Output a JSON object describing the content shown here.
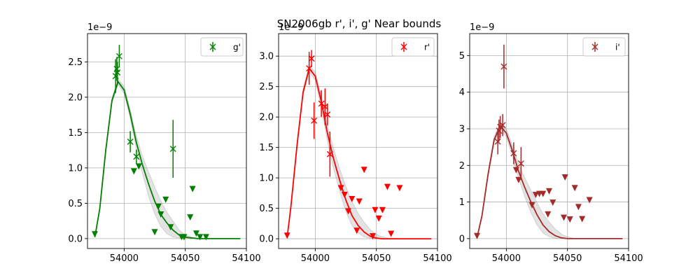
{
  "figure_title": "SN2006gb  r', i', g' Near bounds",
  "chart_data": [
    {
      "type": "scatter",
      "panel": "left",
      "color": "#008000",
      "legend": "g'",
      "legend_position": "upper right",
      "offset_text": "1e−9",
      "grid": true,
      "xlim": [
        53970,
        54100
      ],
      "ylim": [
        -0.14,
        2.9
      ],
      "xticks": [
        54000,
        54050,
        54100
      ],
      "xtick_labels": [
        "54000",
        "54050",
        "54100"
      ],
      "yticks": [
        0.0,
        0.5,
        1.0,
        1.5,
        2.0,
        2.5
      ],
      "ytick_labels": [
        "0.0",
        "0.5",
        "1.0",
        "1.5",
        "2.0",
        "2.5"
      ],
      "detections": [
        {
          "x": 53993,
          "y": 2.3,
          "err": 0.24
        },
        {
          "x": 53994,
          "y": 2.4,
          "err": 0.17
        },
        {
          "x": 53994.5,
          "y": 2.35,
          "err": 0.15
        },
        {
          "x": 53996,
          "y": 2.58,
          "err": 0.16
        },
        {
          "x": 54005,
          "y": 1.37,
          "err": 0.15
        },
        {
          "x": 54010,
          "y": 1.16,
          "err": 0.1
        },
        {
          "x": 54040,
          "y": 1.27,
          "err": 0.41
        }
      ],
      "upper_limits": [
        {
          "x": 53976,
          "y": 0.06
        },
        {
          "x": 54008,
          "y": 0.95
        },
        {
          "x": 54012,
          "y": 1.02
        },
        {
          "x": 54025,
          "y": 0.09
        },
        {
          "x": 54028,
          "y": 0.45
        },
        {
          "x": 54030,
          "y": 0.34
        },
        {
          "x": 54034,
          "y": 0.55
        },
        {
          "x": 54038,
          "y": 0.16
        },
        {
          "x": 54047,
          "y": 0.02
        },
        {
          "x": 54049,
          "y": 0.02
        },
        {
          "x": 54054,
          "y": 0.3
        },
        {
          "x": 54056,
          "y": 0.7
        },
        {
          "x": 54059,
          "y": 0.07
        },
        {
          "x": 54062,
          "y": 0.02
        },
        {
          "x": 54067,
          "y": 0.02
        }
      ],
      "model": {
        "x": [
          53976,
          53980,
          53985,
          53990,
          53995,
          54000,
          54005,
          54010,
          54015,
          54020,
          54025,
          54030,
          54035,
          54040,
          54045,
          54050,
          54055,
          54060,
          54070,
          54080,
          54090,
          54095
        ],
        "y": [
          0.02,
          0.42,
          1.26,
          1.95,
          2.22,
          2.1,
          1.76,
          1.36,
          1.04,
          0.77,
          0.53,
          0.34,
          0.22,
          0.12,
          0.05,
          0.02,
          0.01,
          0.0,
          0.0,
          0.0,
          0.0,
          0.0
        ],
        "band_low": [
          0.02,
          0.4,
          1.22,
          1.91,
          2.18,
          2.05,
          1.7,
          1.27,
          0.92,
          0.6,
          0.35,
          0.17,
          0.07,
          0.02,
          0.01,
          0.0,
          0.0,
          0.0,
          0.0,
          0.0,
          0.0,
          0.0
        ],
        "band_high": [
          0.02,
          0.44,
          1.3,
          1.99,
          2.26,
          2.15,
          1.82,
          1.45,
          1.16,
          0.94,
          0.73,
          0.53,
          0.37,
          0.25,
          0.12,
          0.05,
          0.02,
          0.01,
          0.0,
          0.0,
          0.0,
          0.0
        ]
      }
    },
    {
      "type": "scatter",
      "panel": "middle",
      "color": "#ff0000",
      "legend": "r'",
      "legend_position": "upper right",
      "offset_text": "1e−9",
      "grid": true,
      "xlim": [
        53970,
        54100
      ],
      "ylim": [
        -0.16,
        3.37
      ],
      "xticks": [
        54000,
        54050,
        54100
      ],
      "xtick_labels": [
        "54000",
        "54050",
        "54100"
      ],
      "yticks": [
        0.0,
        0.5,
        1.0,
        1.5,
        2.0,
        2.5,
        3.0
      ],
      "ytick_labels": [
        "0.0",
        "0.5",
        "1.0",
        "1.5",
        "2.0",
        "2.5",
        "3.0"
      ],
      "detections": [
        {
          "x": 53995,
          "y": 2.8,
          "err": 0.27
        },
        {
          "x": 53997,
          "y": 2.96,
          "err": 0.14
        },
        {
          "x": 53999,
          "y": 1.94,
          "err": 0.3
        },
        {
          "x": 54005,
          "y": 2.22,
          "err": 0.22
        },
        {
          "x": 54008,
          "y": 2.17,
          "err": 0.3
        },
        {
          "x": 54010,
          "y": 2.04,
          "err": 0.18
        },
        {
          "x": 54012,
          "y": 1.39,
          "err": 0.37
        }
      ],
      "upper_limits": [
        {
          "x": 53977,
          "y": 0.05
        },
        {
          "x": 54021,
          "y": 0.83
        },
        {
          "x": 54024,
          "y": 0.72
        },
        {
          "x": 54027,
          "y": 0.45
        },
        {
          "x": 54030,
          "y": 0.65
        },
        {
          "x": 54034,
          "y": 0.13
        },
        {
          "x": 54036,
          "y": 0.61
        },
        {
          "x": 54040,
          "y": 1.13
        },
        {
          "x": 54047,
          "y": 0.04
        },
        {
          "x": 54049,
          "y": 0.47
        },
        {
          "x": 54052,
          "y": 0.33
        },
        {
          "x": 54055,
          "y": 0.47
        },
        {
          "x": 54059,
          "y": 0.85
        },
        {
          "x": 54062,
          "y": 0.08
        },
        {
          "x": 54069,
          "y": 0.83
        }
      ],
      "model": {
        "x": [
          53977,
          53980,
          53985,
          53990,
          53995,
          54000,
          54005,
          54010,
          54015,
          54020,
          54025,
          54030,
          54035,
          54040,
          54045,
          54050,
          54055,
          54060,
          54070,
          54080,
          54090,
          54095
        ],
        "y": [
          0.02,
          0.52,
          1.52,
          2.4,
          2.8,
          2.67,
          2.25,
          1.73,
          1.31,
          0.96,
          0.64,
          0.38,
          0.22,
          0.11,
          0.04,
          0.01,
          0.0,
          0.0,
          0.0,
          0.0,
          0.0,
          0.0
        ],
        "band_low": [
          0.02,
          0.5,
          1.48,
          2.35,
          2.75,
          2.6,
          2.15,
          1.6,
          1.15,
          0.78,
          0.45,
          0.22,
          0.1,
          0.03,
          0.01,
          0.0,
          0.0,
          0.0,
          0.0,
          0.0,
          0.0,
          0.0
        ],
        "band_high": [
          0.02,
          0.54,
          1.56,
          2.45,
          2.85,
          2.74,
          2.35,
          1.86,
          1.48,
          1.15,
          0.86,
          0.61,
          0.42,
          0.27,
          0.15,
          0.07,
          0.03,
          0.01,
          0.0,
          0.0,
          0.0,
          0.0
        ]
      }
    },
    {
      "type": "scatter",
      "panel": "right",
      "color": "#a52a2a",
      "legend": "i'",
      "legend_position": "upper right",
      "offset_text": "1e−9",
      "grid": true,
      "xlim": [
        53970,
        54100
      ],
      "ylim": [
        -0.27,
        5.6
      ],
      "xticks": [
        54000,
        54050,
        54100
      ],
      "xtick_labels": [
        "54000",
        "54050",
        "54100"
      ],
      "yticks": [
        0,
        1,
        2,
        3,
        4,
        5
      ],
      "ytick_labels": [
        "0",
        "1",
        "2",
        "3",
        "4",
        "5"
      ],
      "detections": [
        {
          "x": 53993,
          "y": 2.65,
          "err": 0.35
        },
        {
          "x": 53994,
          "y": 2.95,
          "err": 0.3
        },
        {
          "x": 53995,
          "y": 3.05,
          "err": 0.3
        },
        {
          "x": 53997,
          "y": 3.1,
          "err": 0.3
        },
        {
          "x": 53998,
          "y": 4.7,
          "err": 0.6
        },
        {
          "x": 54006,
          "y": 2.33,
          "err": 0.3
        },
        {
          "x": 54012,
          "y": 2.05,
          "err": 0.45
        }
      ],
      "upper_limits": [
        {
          "x": 53976,
          "y": 0.07
        },
        {
          "x": 54008,
          "y": 1.87
        },
        {
          "x": 54010,
          "y": 1.6
        },
        {
          "x": 54021,
          "y": 0.91
        },
        {
          "x": 54024,
          "y": 1.19
        },
        {
          "x": 54027,
          "y": 1.22
        },
        {
          "x": 54030,
          "y": 1.22
        },
        {
          "x": 54034,
          "y": 0.66
        },
        {
          "x": 54035,
          "y": 1.29
        },
        {
          "x": 54038,
          "y": 0.98
        },
        {
          "x": 54047,
          "y": 0.57
        },
        {
          "x": 54048,
          "y": 1.67
        },
        {
          "x": 54052,
          "y": 0.52
        },
        {
          "x": 54056,
          "y": 1.38
        },
        {
          "x": 54059,
          "y": 0.86
        },
        {
          "x": 54062,
          "y": 0.53
        },
        {
          "x": 54068,
          "y": 1.05
        }
      ],
      "model": {
        "x": [
          53976,
          53980,
          53985,
          53990,
          53995,
          54000,
          54005,
          54010,
          54015,
          54020,
          54025,
          54030,
          54035,
          54040,
          54045,
          54050,
          54055,
          54060,
          54070,
          54080,
          54090,
          54095
        ],
        "y": [
          0.03,
          0.62,
          1.75,
          2.7,
          3.08,
          2.88,
          2.4,
          1.84,
          1.4,
          1.01,
          0.66,
          0.37,
          0.19,
          0.08,
          0.02,
          0.0,
          0.0,
          0.0,
          0.0,
          0.0,
          0.0,
          0.0
        ],
        "band_low": [
          0.03,
          0.58,
          1.68,
          2.62,
          3.0,
          2.78,
          2.25,
          1.65,
          1.15,
          0.72,
          0.38,
          0.15,
          0.05,
          0.01,
          0.0,
          0.0,
          0.0,
          0.0,
          0.0,
          0.0,
          0.0,
          0.0
        ],
        "band_high": [
          0.03,
          0.66,
          1.82,
          2.78,
          3.16,
          2.98,
          2.55,
          2.03,
          1.66,
          1.32,
          0.98,
          0.68,
          0.45,
          0.26,
          0.12,
          0.05,
          0.01,
          0.0,
          0.0,
          0.0,
          0.0,
          0.0
        ]
      }
    }
  ]
}
